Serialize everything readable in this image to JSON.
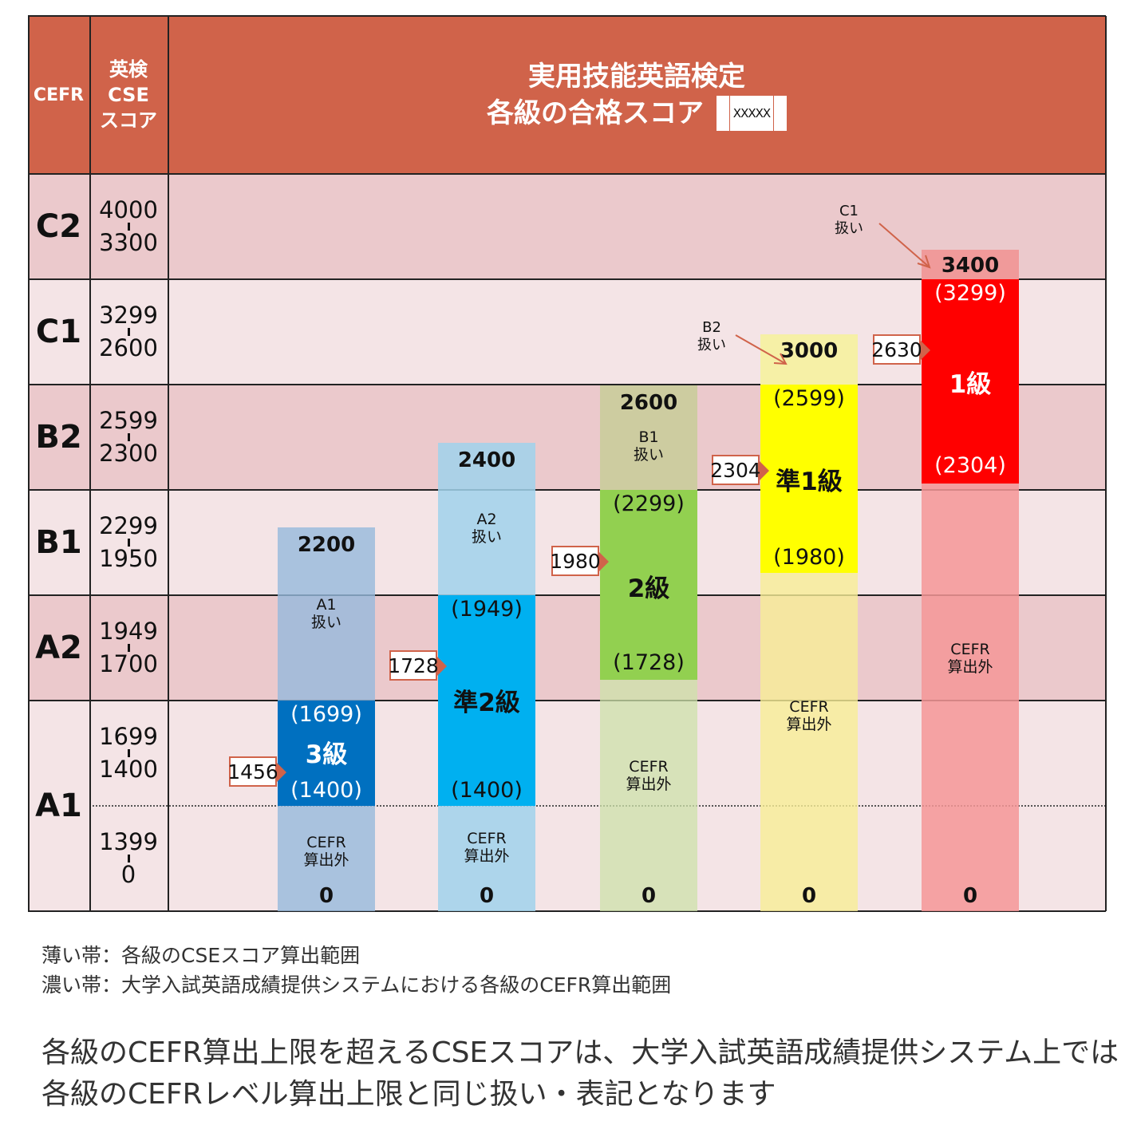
{
  "header": {
    "cefr": "CEFR",
    "cse": "英検\nCSE\nスコア",
    "title1": "実用技能英語検定",
    "title2": "各級の合格スコア",
    "legend_box": "XXXXX"
  },
  "rows": [
    {
      "level": "C2",
      "top": "4000",
      "bottom": "3300"
    },
    {
      "level": "C1",
      "top": "3299",
      "bottom": "2600"
    },
    {
      "level": "B2",
      "top": "2599",
      "bottom": "2300"
    },
    {
      "level": "B1",
      "top": "2299",
      "bottom": "1950"
    },
    {
      "level": "A2",
      "top": "1949",
      "bottom": "1700"
    },
    {
      "level": "A1",
      "top": "1699",
      "bottom": "1400",
      "top2": "1399",
      "bottom2": "0"
    }
  ],
  "grades": [
    {
      "name": "3級",
      "max": "2200",
      "cefr_upper": "(1699)",
      "cefr_lower": "(1400)",
      "upper_note": "A1\n扱い",
      "out": "CEFR\n算出外",
      "zero": "0",
      "pass": "1456",
      "color": "#0070c0"
    },
    {
      "name": "準2級",
      "max": "2400",
      "cefr_upper": "(1949)",
      "cefr_lower": "(1400)",
      "upper_note": "A2\n扱い",
      "out": "CEFR\n算出外",
      "zero": "0",
      "pass": "1728",
      "color": "#00b0f0"
    },
    {
      "name": "2級",
      "max": "2600",
      "cefr_upper": "(2299)",
      "cefr_lower": "(1728)",
      "upper_note": "B1\n扱い",
      "out": "CEFR\n算出外",
      "zero": "0",
      "pass": "1980",
      "color": "#92d050"
    },
    {
      "name": "準1級",
      "max": "3000",
      "cefr_upper": "(2599)",
      "cefr_lower": "(1980)",
      "upper_note": "B2\n扱い",
      "out": "CEFR\n算出外",
      "zero": "0",
      "pass": "2304",
      "color": "#ffff00"
    },
    {
      "name": "1級",
      "max": "3400",
      "cefr_upper": "(3299)",
      "cefr_lower": "(2304)",
      "upper_note": "C1\n扱い",
      "out": "CEFR\n算出外",
      "zero": "0",
      "pass": "2630",
      "color": "#ff0000"
    }
  ],
  "legend": {
    "light": "薄い帯：各級のCSEスコア算出範囲",
    "dark": "濃い帯：大学入試英語成績提供システムにおける各級のCEFR算出範囲"
  },
  "footnote": {
    "line1": "各級のCEFR算出上限を超えるCSEスコアは、大学入試英語成績提供システム上では",
    "line2": "各級のCEFRレベル算出上限と同じ扱い・表記となります"
  }
}
